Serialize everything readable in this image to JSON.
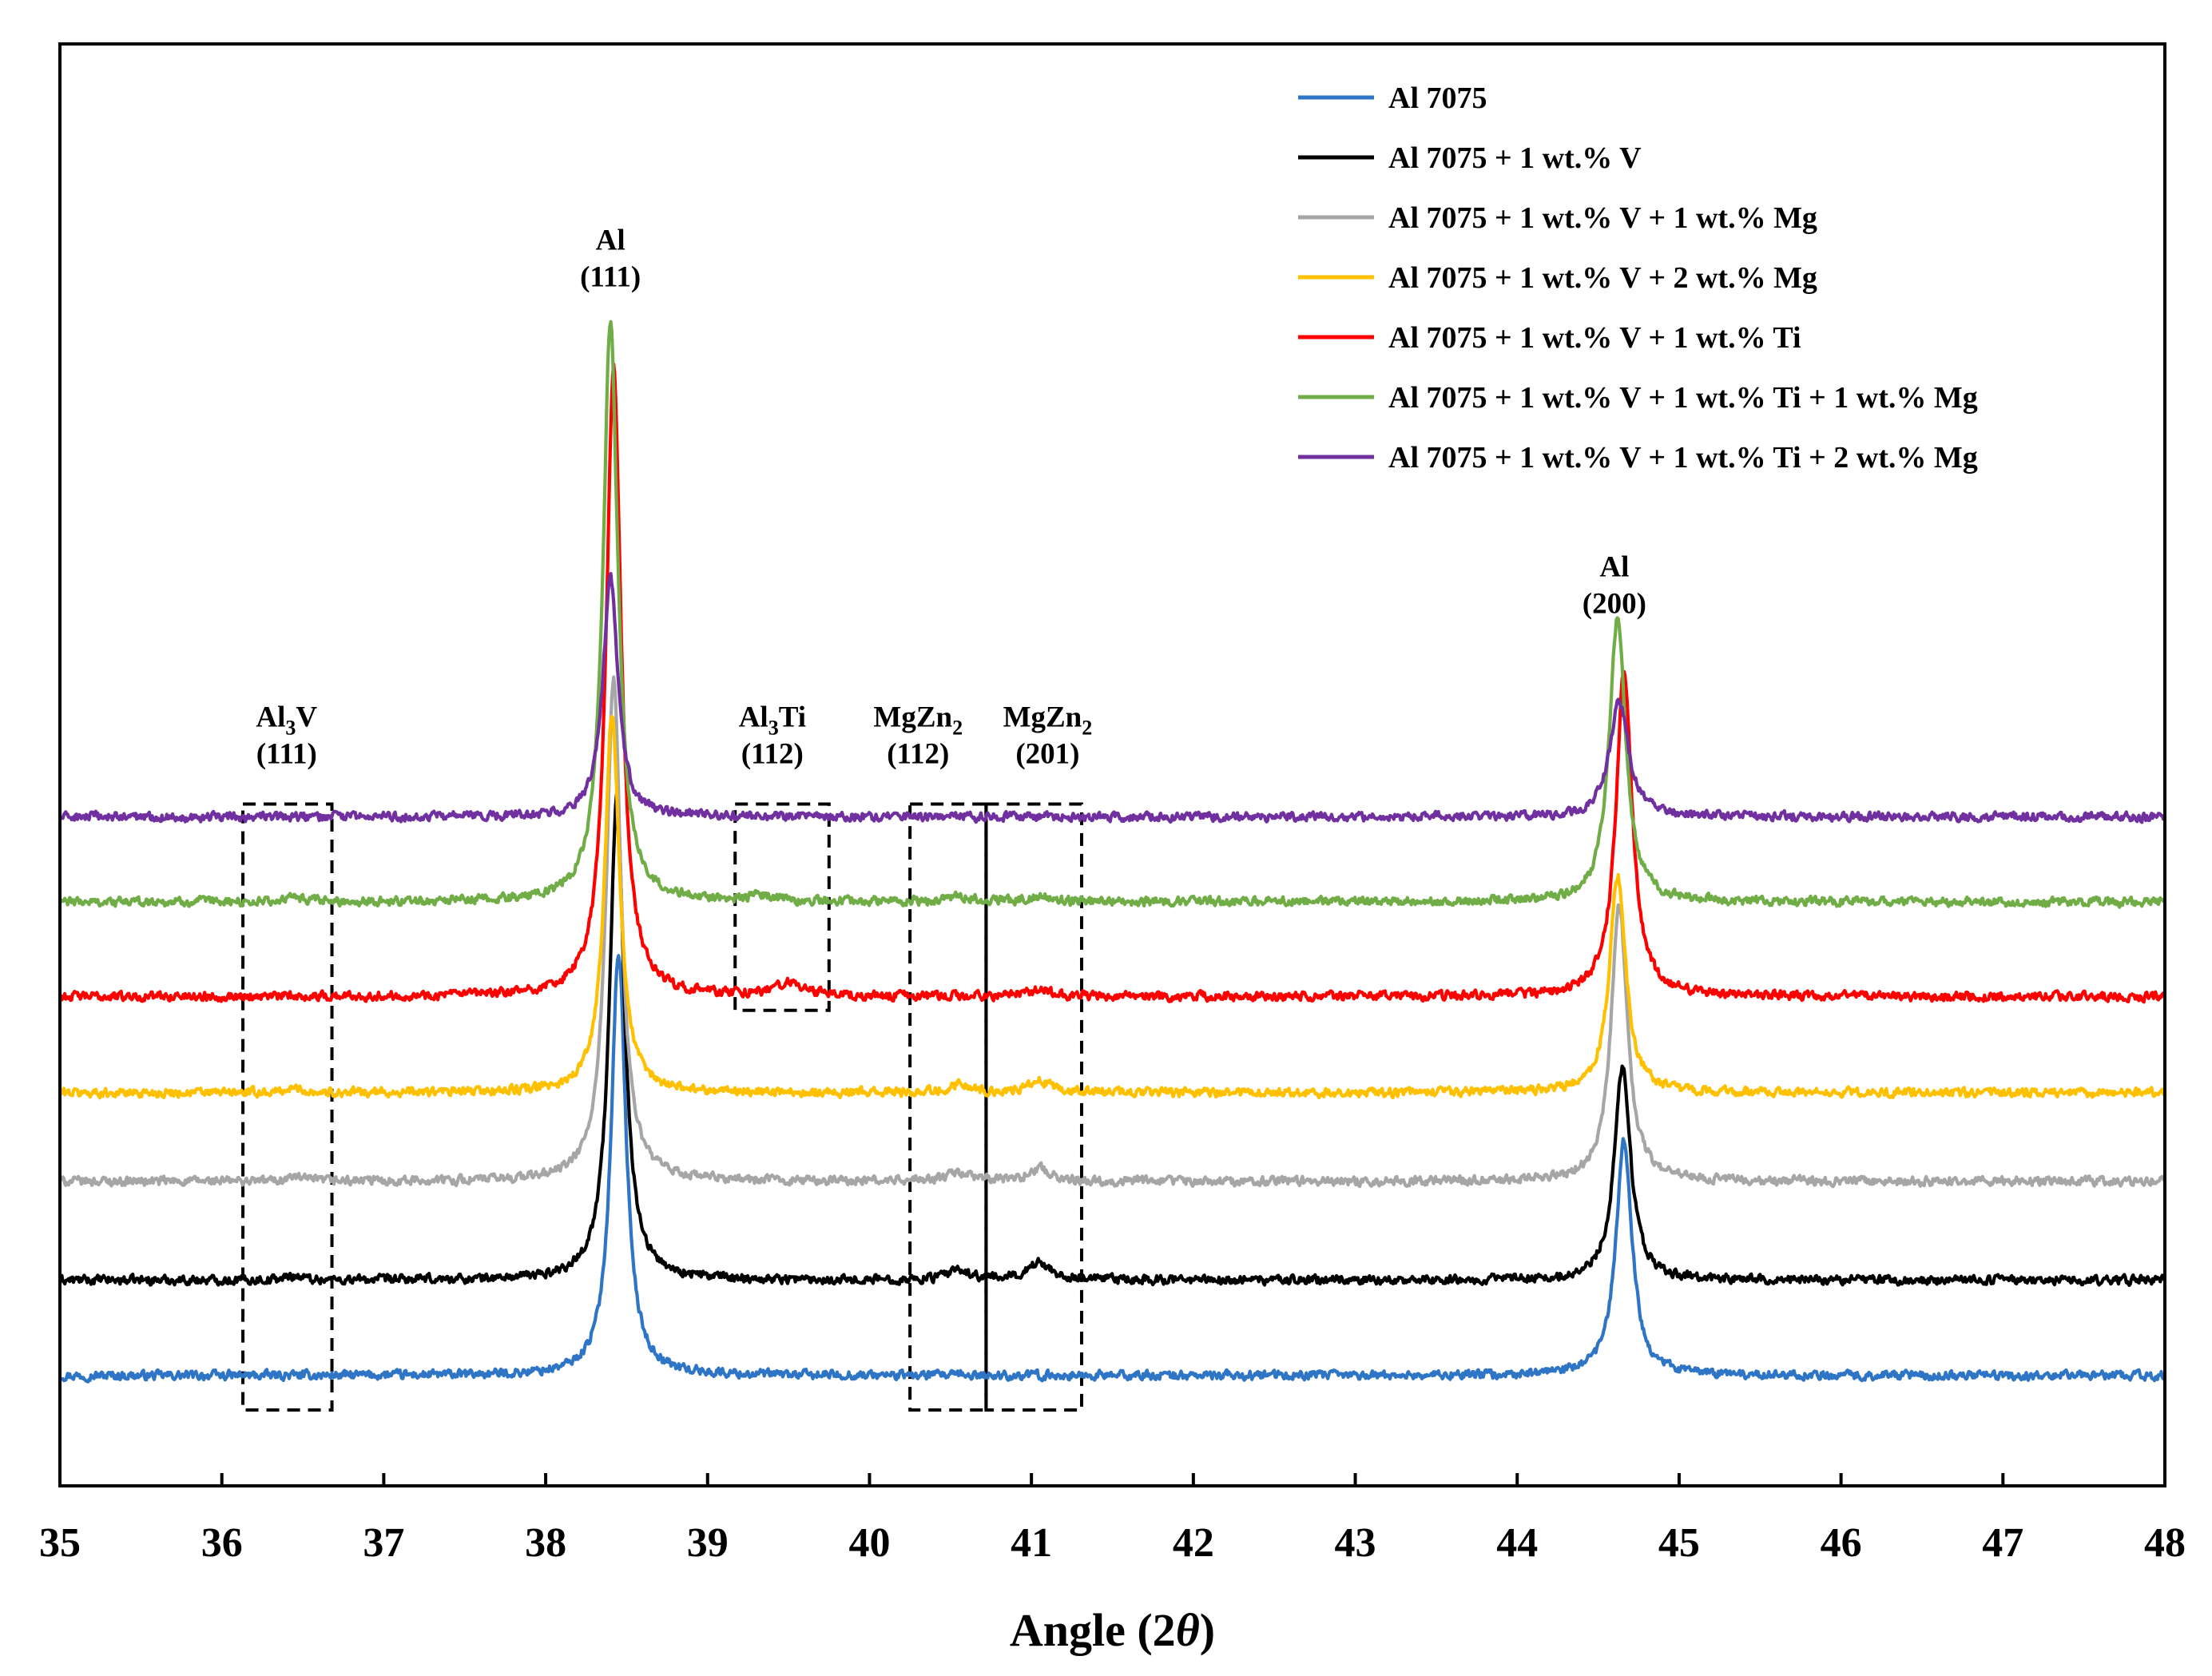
{
  "chart_data": {
    "type": "line",
    "title": "",
    "xlabel": "Angle (2",
    "xlabel_theta": "θ",
    "xlabel_close": ")",
    "ylabel": "",
    "xlim": [
      35,
      48
    ],
    "xticks": [
      "35",
      "36",
      "37",
      "38",
      "39",
      "40",
      "41",
      "42",
      "43",
      "44",
      "45",
      "46",
      "47",
      "48"
    ],
    "y_units": "offset intensity (baseline 0, Al 7075 Al(111) peak = 1.0)",
    "series": [
      {
        "name": "Al 7075",
        "color": "#2E75C6",
        "offset": 0.0,
        "peaks": [
          {
            "x": 38.45,
            "h": 0.985,
            "w": 0.055
          },
          {
            "x": 44.66,
            "h": 0.545,
            "w": 0.06
          }
        ]
      },
      {
        "name": "Al 7075 + 1 wt.% V",
        "color": "#000000",
        "offset": 0.222,
        "peaks": [
          {
            "x": 38.44,
            "h": 1.125,
            "w": 0.055
          },
          {
            "x": 44.65,
            "h": 0.495,
            "w": 0.06
          },
          {
            "x": 40.55,
            "h": 0.022,
            "w": 0.08
          },
          {
            "x": 41.05,
            "h": 0.04,
            "w": 0.09
          },
          {
            "x": 36.45,
            "h": 0.01,
            "w": 0.06
          }
        ]
      },
      {
        "name": "Al 7075 + 1 wt.% V + 1 wt.% Mg",
        "color": "#A6A6A6",
        "offset": 0.452,
        "peaks": [
          {
            "x": 38.42,
            "h": 1.17,
            "w": 0.055
          },
          {
            "x": 44.63,
            "h": 0.645,
            "w": 0.06
          },
          {
            "x": 40.55,
            "h": 0.02,
            "w": 0.08
          },
          {
            "x": 41.05,
            "h": 0.03,
            "w": 0.08
          },
          {
            "x": 36.45,
            "h": 0.01,
            "w": 0.06
          }
        ]
      },
      {
        "name": "Al 7075 + 1 wt.% V + 2 wt.% Mg",
        "color": "#FFC000",
        "offset": 0.658,
        "peaks": [
          {
            "x": 38.41,
            "h": 0.885,
            "w": 0.055
          },
          {
            "x": 44.62,
            "h": 0.505,
            "w": 0.06
          },
          {
            "x": 40.55,
            "h": 0.02,
            "w": 0.08
          },
          {
            "x": 41.05,
            "h": 0.025,
            "w": 0.08
          },
          {
            "x": 36.45,
            "h": 0.01,
            "w": 0.06
          }
        ]
      },
      {
        "name": "Al 7075 + 1 wt.% V + 1 wt.% Ti",
        "color": "#FF0000",
        "offset": 0.882,
        "peaks": [
          {
            "x": 38.42,
            "h": 1.465,
            "w": 0.055
          },
          {
            "x": 44.66,
            "h": 0.76,
            "w": 0.06
          },
          {
            "x": 39.5,
            "h": 0.03,
            "w": 0.1
          },
          {
            "x": 41.05,
            "h": 0.015,
            "w": 0.08
          }
        ]
      },
      {
        "name": "Al 7075 + 1 wt.% V + 1 wt.% Ti + 1 wt.% Mg",
        "color": "#70AD47",
        "offset": 1.102,
        "peaks": [
          {
            "x": 38.4,
            "h": 1.35,
            "w": 0.055
          },
          {
            "x": 44.62,
            "h": 0.665,
            "w": 0.06
          },
          {
            "x": 39.35,
            "h": 0.012,
            "w": 0.1
          },
          {
            "x": 40.55,
            "h": 0.012,
            "w": 0.08
          },
          {
            "x": 41.05,
            "h": 0.012,
            "w": 0.08
          },
          {
            "x": 36.45,
            "h": 0.01,
            "w": 0.06
          }
        ]
      },
      {
        "name": "Al 7075 + 1 wt.% V + 1 wt.% Ti + 2 wt.% Mg",
        "color": "#7030A0",
        "offset": 1.3,
        "peaks": [
          {
            "x": 38.4,
            "h": 0.555,
            "w": 0.055
          },
          {
            "x": 44.63,
            "h": 0.27,
            "w": 0.07
          }
        ]
      }
    ],
    "annotations": [
      {
        "main": "Al",
        "sub": "",
        "tail": "",
        "hkl": "(111)",
        "x": 38.4,
        "y_value": 2.62
      },
      {
        "main": "Al",
        "sub": "",
        "tail": "",
        "hkl": "(200)",
        "x": 44.6,
        "y_value": 1.86
      },
      {
        "main": "Al",
        "sub": "3",
        "tail": "V",
        "hkl": "(111)",
        "x": 36.4,
        "y_value": 1.51
      },
      {
        "main": "Al",
        "sub": "3",
        "tail": "Ti",
        "hkl": "(112)",
        "x": 39.4,
        "y_value": 1.51
      },
      {
        "main": "MgZn",
        "sub": "2",
        "tail": "",
        "hkl": "(112)",
        "x": 40.3,
        "y_value": 1.51
      },
      {
        "main": "MgZn",
        "sub": "2",
        "tail": "",
        "hkl": "(201)",
        "x": 41.1,
        "y_value": 1.51
      }
    ],
    "dashed_boxes": [
      {
        "x0": 36.13,
        "x1": 36.68,
        "y0": -0.08,
        "y1": 1.33
      },
      {
        "x0": 39.17,
        "x1": 39.75,
        "y0": 0.85,
        "y1": 1.33
      },
      {
        "x0": 40.25,
        "x1": 40.72,
        "y0": -0.08,
        "y1": 1.33
      },
      {
        "x0": 40.72,
        "x1": 41.31,
        "y0": -0.08,
        "y1": 1.33
      }
    ],
    "legend_position": "top-right",
    "grid": false
  }
}
